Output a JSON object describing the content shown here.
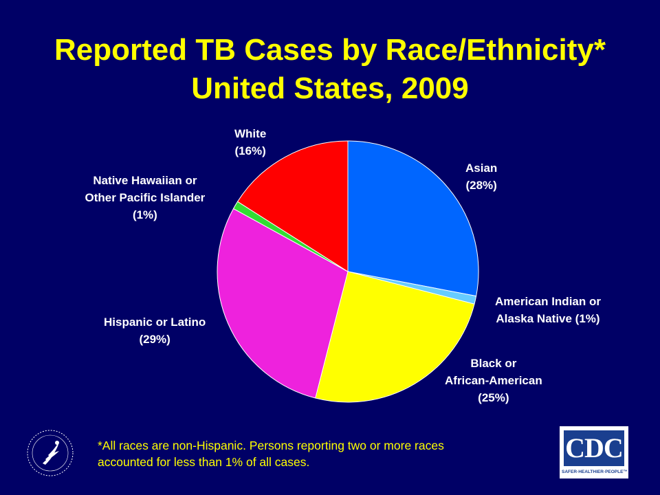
{
  "title": {
    "line1": "Reported TB Cases by Race/Ethnicity*",
    "line2": "United States, 2009"
  },
  "chart_data": {
    "type": "pie",
    "title": "Reported TB Cases by Race/Ethnicity* United States, 2009",
    "slices": [
      {
        "label_lines": [
          "Asian",
          "(28%)"
        ],
        "value": 28,
        "color": "#0066ff"
      },
      {
        "label_lines": [
          "American Indian or",
          "Alaska Native (1%)"
        ],
        "value": 1,
        "color": "#66ccff"
      },
      {
        "label_lines": [
          "Black or",
          "African-American",
          "(25%)"
        ],
        "value": 25,
        "color": "#ffff00"
      },
      {
        "label_lines": [
          "Hispanic or Latino",
          "(29%)"
        ],
        "value": 29,
        "color": "#ee22dd"
      },
      {
        "label_lines": [
          "Native Hawaiian or",
          "Other Pacific Islander",
          "(1%)"
        ],
        "value": 1,
        "color": "#33dd33"
      },
      {
        "label_lines": [
          "White",
          "(16%)"
        ],
        "value": 16,
        "color": "#ff0000"
      }
    ],
    "start": "12 o'clock",
    "direction": "clockwise"
  },
  "footnote": {
    "line1": "*All races are non-Hispanic. Persons reporting two or more races",
    "line2": "accounted for less than 1% of all cases."
  },
  "logos": {
    "cdc_text": "CDC",
    "cdc_tagline": "SAFER·HEALTHIER·PEOPLE™",
    "cdc_color": "#1a3f8f"
  },
  "colors": {
    "background": "#000066",
    "title": "#ffff00",
    "labels": "#ffffff",
    "footnote": "#ffff00"
  }
}
